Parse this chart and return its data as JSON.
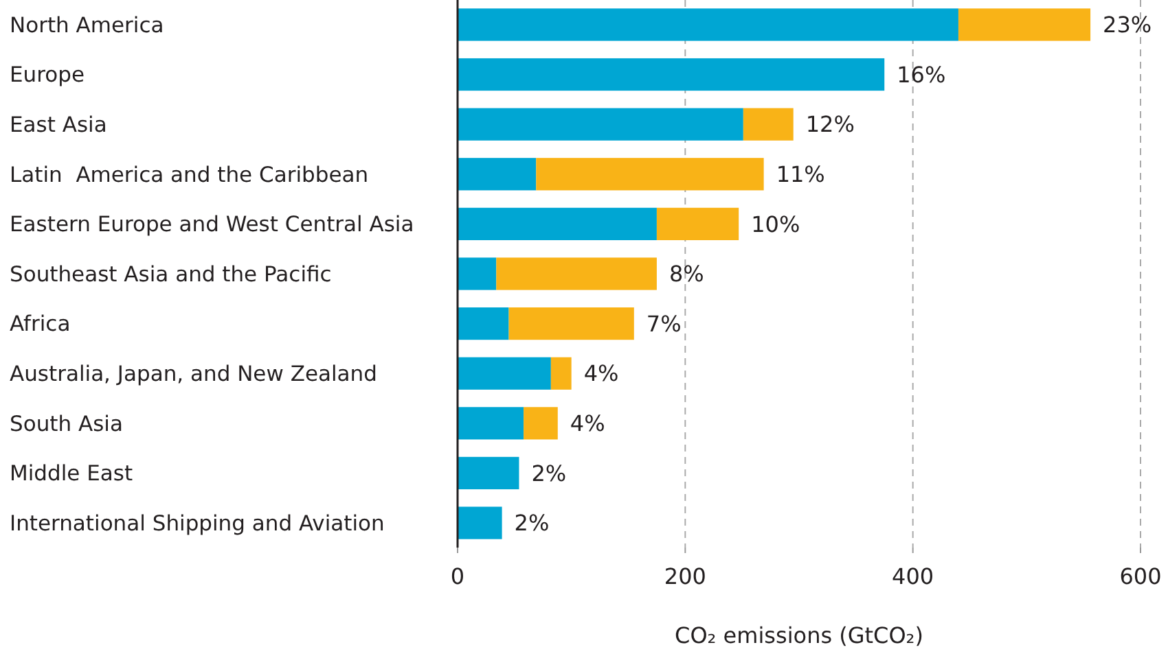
{
  "chart_data": {
    "type": "bar",
    "orientation": "horizontal",
    "stacked": true,
    "categories": [
      "North America",
      "Europe",
      "East Asia",
      "Latin  America and the Caribbean",
      "Eastern Europe and West Central Asia",
      "Southeast Asia and the Pacific",
      "Africa",
      "Australia, Japan, and New Zealand",
      "South Asia",
      "Middle East",
      "International Shipping and Aviation"
    ],
    "series": [
      {
        "color": "#00a6d3",
        "values": [
          440,
          375,
          251,
          69,
          175,
          34,
          45,
          82,
          58,
          54,
          39
        ]
      },
      {
        "color": "#f9b317",
        "values": [
          116,
          null,
          44,
          200,
          72,
          141,
          110,
          18,
          30,
          null,
          null
        ]
      }
    ],
    "annotations": [
      {
        "text": "23%",
        "x": 556,
        "y": "North America"
      },
      {
        "text": "16%",
        "x": 375,
        "y": "Europe"
      },
      {
        "text": "12%",
        "x": 295,
        "y": "East Asia"
      },
      {
        "text": "11%",
        "x": 269,
        "y": "Latin  America and the Caribbean"
      },
      {
        "text": "10%",
        "x": 247,
        "y": "Eastern Europe and West Central Asia"
      },
      {
        "text": "8%",
        "x": 175,
        "y": "Southeast Asia and the Pacific"
      },
      {
        "text": "7%",
        "x": 155,
        "y": "Africa"
      },
      {
        "text": "4%",
        "x": 100,
        "y": "Australia, Japan, and New Zealand"
      },
      {
        "text": "4%",
        "x": 88,
        "y": "South Asia"
      },
      {
        "text": "2%",
        "x": 54,
        "y": "Middle East"
      },
      {
        "text": "2%",
        "x": 39,
        "y": "International Shipping and Aviation"
      }
    ],
    "xlabel": "CO₂ emissions (GtCO₂)",
    "xlim": [
      0,
      600
    ],
    "xticks": [
      0,
      200,
      400,
      600
    ],
    "grid": "x"
  }
}
